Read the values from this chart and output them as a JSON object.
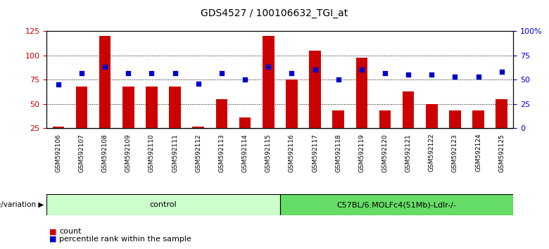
{
  "title": "GDS4527 / 100106632_TGI_at",
  "samples": [
    "GSM592106",
    "GSM592107",
    "GSM592108",
    "GSM592109",
    "GSM592110",
    "GSM592111",
    "GSM592112",
    "GSM592113",
    "GSM592114",
    "GSM592115",
    "GSM592116",
    "GSM592117",
    "GSM592118",
    "GSM592119",
    "GSM592120",
    "GSM592121",
    "GSM592122",
    "GSM592123",
    "GSM592124",
    "GSM592125"
  ],
  "counts": [
    27,
    68,
    120,
    68,
    68,
    68,
    27,
    55,
    36,
    120,
    75,
    105,
    43,
    98,
    43,
    63,
    50,
    43,
    43,
    55
  ],
  "percentiles": [
    45,
    57,
    63,
    57,
    57,
    57,
    46,
    57,
    50,
    63,
    57,
    60,
    50,
    60,
    57,
    55,
    55,
    53,
    53,
    58
  ],
  "bar_color": "#cc0000",
  "dot_color": "#0000cc",
  "ylim_left": [
    25,
    125
  ],
  "ylim_right": [
    0,
    100
  ],
  "yticks_left": [
    25,
    50,
    75,
    100,
    125
  ],
  "ytick_labels_left": [
    "25",
    "50",
    "75",
    "100",
    "125"
  ],
  "yticks_right": [
    0,
    25,
    50,
    75,
    100
  ],
  "ytick_labels_right": [
    "0",
    "25",
    "50",
    "75",
    "100%"
  ],
  "groups": [
    {
      "label": "control",
      "start": 0,
      "end": 10,
      "color": "#ccffcc"
    },
    {
      "label": "C57BL/6.MOLFc4(51Mb)-Ldlr-/-",
      "start": 10,
      "end": 20,
      "color": "#66dd66"
    }
  ],
  "group_band_color": "#cccccc",
  "legend_count_label": "count",
  "legend_pct_label": "percentile rank within the sample",
  "group_row_label": "genotype/variation",
  "background_color": "#ffffff",
  "bar_bottom": 25,
  "title_fontsize": 10,
  "tick_label_fontsize": 6.5,
  "axis_tick_fontsize": 8,
  "group_fontsize": 8,
  "legend_fontsize": 8
}
